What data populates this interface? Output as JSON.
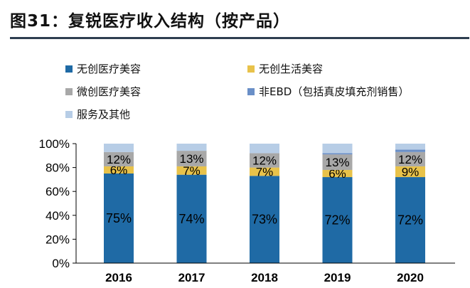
{
  "title": "图31：复锐医疗收入结构（按产品）",
  "chart_data": {
    "type": "bar",
    "stacked": true,
    "categories": [
      "2016",
      "2017",
      "2018",
      "2019",
      "2020"
    ],
    "series": [
      {
        "name": "无创医疗美容",
        "color": "#1f6aa5",
        "values": [
          75,
          74,
          73,
          72,
          72
        ],
        "labels": [
          "75%",
          "74%",
          "73%",
          "72%",
          "72%"
        ]
      },
      {
        "name": "无创生活美容",
        "color": "#e8c24a",
        "values": [
          6,
          7,
          7,
          6,
          9
        ],
        "labels": [
          "6%",
          "7%",
          "7%",
          "6%",
          "9%"
        ]
      },
      {
        "name": "微创医疗美容",
        "color": "#a8a8a8",
        "values": [
          12,
          13,
          12,
          13,
          12
        ],
        "labels": [
          "12%",
          "13%",
          "12%",
          "13%",
          "12%"
        ]
      },
      {
        "name": "非EBD（包括真皮填充剂销售）",
        "color": "#6a8fc7",
        "values": [
          0,
          0,
          0,
          1,
          2
        ],
        "labels": [
          "",
          "",
          "",
          "",
          ""
        ]
      },
      {
        "name": "服务及其他",
        "color": "#b7cde6",
        "values": [
          7,
          6,
          8,
          8,
          5
        ],
        "labels": [
          "",
          "",
          "",
          "",
          ""
        ]
      }
    ],
    "yticks": [
      "0%",
      "20%",
      "40%",
      "60%",
      "80%",
      "100%"
    ],
    "ylim": [
      0,
      100
    ],
    "legend": "top",
    "grid": false
  }
}
